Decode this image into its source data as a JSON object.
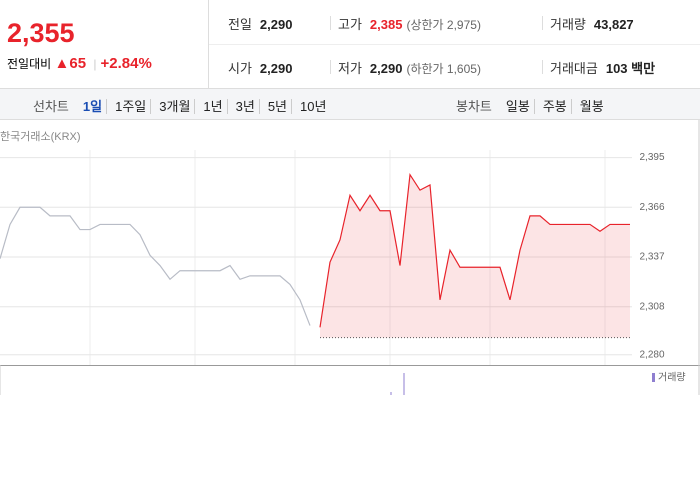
{
  "header": {
    "price": "2,355",
    "change_label": "전일대비",
    "change": "65",
    "change_rate": "+2.84%"
  },
  "stats": [
    [
      {
        "label": "전일",
        "value": "2,290"
      },
      {
        "label": "고가",
        "value": "2,385",
        "note": "(상한가 2,975)"
      },
      {
        "label": "거래량",
        "value": "43,827"
      }
    ],
    [
      {
        "label": "시가",
        "value": "2,290"
      },
      {
        "label": "저가",
        "value": "2,290",
        "note": "(하한가 1,605)"
      },
      {
        "label": "거래대금",
        "value": "103 백만"
      }
    ]
  ],
  "tabs": {
    "line_label": "선차트",
    "line": [
      "1일",
      "1주일",
      "3개월",
      "1년",
      "3년",
      "5년",
      "10년"
    ],
    "candle_label": "봉차트",
    "candle": [
      "일봉",
      "주봉",
      "월봉"
    ]
  },
  "chart_data": {
    "type": "line",
    "source": "한국거래소(KRX)",
    "volume_legend": "거래량",
    "volume_color": "#8f7fd0",
    "baseline": 2290,
    "ylim": [
      2274,
      2414
    ],
    "yticks": [
      {
        "value": 2280,
        "label": "2,280"
      },
      {
        "value": 2308,
        "label": "2,308"
      },
      {
        "value": 2337,
        "label": "2,337"
      },
      {
        "value": 2366,
        "label": "2,366"
      },
      {
        "value": 2395,
        "label": "2,395"
      }
    ],
    "grid": true,
    "series": [
      {
        "color": "#b8bcc6",
        "values": [
          2336,
          2356,
          2366,
          2366,
          2366,
          2361,
          2361,
          2361,
          2353,
          2353,
          2356,
          2356,
          2356,
          2356,
          2350,
          2338,
          2332,
          2324,
          2329,
          2329,
          2329,
          2329,
          2329,
          2332,
          2324,
          2326,
          2326,
          2326,
          2326,
          2321,
          2312,
          2297,
          null,
          null,
          null,
          null,
          null,
          null,
          null,
          null,
          null,
          null,
          null,
          null,
          null,
          null,
          null,
          null,
          null,
          null,
          null,
          null,
          null,
          null,
          null,
          null,
          null,
          null,
          null,
          null,
          null,
          null,
          null,
          null
        ]
      },
      {
        "color": "#e8232b",
        "values": [
          null,
          null,
          null,
          null,
          null,
          null,
          null,
          null,
          null,
          null,
          null,
          null,
          null,
          null,
          null,
          null,
          null,
          null,
          null,
          null,
          null,
          null,
          null,
          null,
          null,
          null,
          null,
          null,
          null,
          null,
          null,
          null,
          2296,
          2334,
          2347,
          2373,
          2364,
          2373,
          2364,
          2364,
          2332,
          2385,
          2376,
          2379,
          2312,
          2341,
          2331,
          2331,
          2331,
          2331,
          2331,
          2312,
          2341,
          2361,
          2361,
          2356,
          2356,
          2356,
          2356,
          2356,
          2352,
          2356,
          2356,
          2356
        ]
      }
    ]
  }
}
